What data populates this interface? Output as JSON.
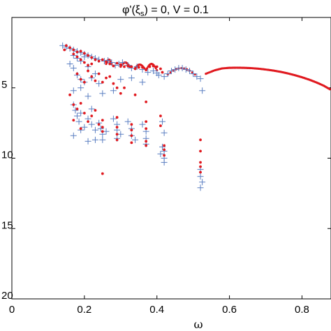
{
  "chart_data": {
    "type": "scatter",
    "title": "φ'(ξs) = 0, V = 0.1",
    "xlabel": "ω",
    "ylabel": "",
    "xlim": [
      0,
      0.88
    ],
    "ylim": [
      20,
      0
    ],
    "y_inverted": true,
    "x_ticks": [
      "0",
      "0.2",
      "0.4",
      "0.6",
      "0.8"
    ],
    "x_tick_values": [
      0,
      0.2,
      0.4,
      0.6,
      0.8
    ],
    "y_ticks": [
      "5",
      "10",
      "15",
      "20"
    ],
    "y_tick_values": [
      5,
      10,
      15,
      20
    ],
    "grid": false,
    "series": [
      {
        "marker": "plus",
        "color": "#5b7fc2",
        "points": [
          [
            0.14,
            2.0
          ],
          [
            0.15,
            2.1
          ],
          [
            0.16,
            2.2
          ],
          [
            0.17,
            2.3
          ],
          [
            0.18,
            2.4
          ],
          [
            0.19,
            2.5
          ],
          [
            0.2,
            2.6
          ],
          [
            0.21,
            2.7
          ],
          [
            0.22,
            2.8
          ],
          [
            0.23,
            2.9
          ],
          [
            0.24,
            3.0
          ],
          [
            0.255,
            3.1
          ],
          [
            0.265,
            3.05
          ],
          [
            0.275,
            3.2
          ],
          [
            0.285,
            3.4
          ],
          [
            0.295,
            3.3
          ],
          [
            0.305,
            3.2
          ],
          [
            0.32,
            3.4
          ],
          [
            0.33,
            3.6
          ],
          [
            0.345,
            3.5
          ],
          [
            0.36,
            3.7
          ],
          [
            0.375,
            3.9
          ],
          [
            0.39,
            3.8
          ],
          [
            0.4,
            3.95
          ],
          [
            0.405,
            4.1
          ],
          [
            0.42,
            4.2
          ],
          [
            0.43,
            4.0
          ],
          [
            0.44,
            3.8
          ],
          [
            0.45,
            3.7
          ],
          [
            0.46,
            3.6
          ],
          [
            0.47,
            3.6
          ],
          [
            0.48,
            3.7
          ],
          [
            0.49,
            3.8
          ],
          [
            0.5,
            4.0
          ],
          [
            0.51,
            4.2
          ],
          [
            0.52,
            4.35
          ],
          [
            0.525,
            5.2
          ],
          [
            0.17,
            2.7
          ],
          [
            0.18,
            2.9
          ],
          [
            0.19,
            3.1
          ],
          [
            0.2,
            2.8
          ],
          [
            0.21,
            3.5
          ],
          [
            0.16,
            3.3
          ],
          [
            0.17,
            3.6
          ],
          [
            0.18,
            4.1
          ],
          [
            0.19,
            4.4
          ],
          [
            0.2,
            4.6
          ],
          [
            0.22,
            4.3
          ],
          [
            0.23,
            4.0
          ],
          [
            0.17,
            5.2
          ],
          [
            0.19,
            5.0
          ],
          [
            0.21,
            5.6
          ],
          [
            0.24,
            4.7
          ],
          [
            0.25,
            5.4
          ],
          [
            0.28,
            5.2
          ],
          [
            0.3,
            4.4
          ],
          [
            0.33,
            4.3
          ],
          [
            0.36,
            4.6
          ],
          [
            0.17,
            6.2
          ],
          [
            0.175,
            6.6
          ],
          [
            0.18,
            7.0
          ],
          [
            0.185,
            7.4
          ],
          [
            0.19,
            6.8
          ],
          [
            0.2,
            7.8
          ],
          [
            0.21,
            7.2
          ],
          [
            0.22,
            6.5
          ],
          [
            0.22,
            7.6
          ],
          [
            0.23,
            8.0
          ],
          [
            0.24,
            7.5
          ],
          [
            0.245,
            7.9
          ],
          [
            0.25,
            8.3
          ],
          [
            0.25,
            8.7
          ],
          [
            0.26,
            8.1
          ],
          [
            0.17,
            8.4
          ],
          [
            0.19,
            8.0
          ],
          [
            0.21,
            8.8
          ],
          [
            0.23,
            8.7
          ],
          [
            0.28,
            7.2
          ],
          [
            0.29,
            7.6
          ],
          [
            0.29,
            8.0
          ],
          [
            0.29,
            8.6
          ],
          [
            0.3,
            8.3
          ],
          [
            0.32,
            7.4
          ],
          [
            0.33,
            7.9
          ],
          [
            0.33,
            8.4
          ],
          [
            0.34,
            8.7
          ],
          [
            0.36,
            7.6
          ],
          [
            0.37,
            8.1
          ],
          [
            0.37,
            8.6
          ],
          [
            0.37,
            9.0
          ],
          [
            0.415,
            7.4
          ],
          [
            0.42,
            8.2
          ],
          [
            0.415,
            9.2
          ],
          [
            0.42,
            9.5
          ],
          [
            0.41,
            9.7
          ],
          [
            0.42,
            10.0
          ],
          [
            0.42,
            10.3
          ],
          [
            0.52,
            10.8
          ],
          [
            0.52,
            11.3
          ],
          [
            0.525,
            11.7
          ],
          [
            0.52,
            12.1
          ]
        ]
      },
      {
        "marker": "dot",
        "color": "#e0191f",
        "points": [
          [
            0.145,
            2.3
          ],
          [
            0.15,
            2.0
          ],
          [
            0.16,
            2.15
          ],
          [
            0.17,
            2.3
          ],
          [
            0.18,
            2.45
          ],
          [
            0.19,
            2.4
          ],
          [
            0.2,
            2.55
          ],
          [
            0.21,
            2.7
          ],
          [
            0.22,
            2.85
          ],
          [
            0.23,
            3.0
          ],
          [
            0.24,
            3.1
          ],
          [
            0.25,
            3.0
          ],
          [
            0.26,
            3.15
          ],
          [
            0.27,
            3.3
          ],
          [
            0.28,
            3.45
          ],
          [
            0.29,
            3.25
          ],
          [
            0.3,
            3.35
          ],
          [
            0.31,
            3.5
          ],
          [
            0.32,
            3.45
          ],
          [
            0.33,
            3.5
          ],
          [
            0.34,
            3.65
          ],
          [
            0.35,
            3.55
          ],
          [
            0.36,
            3.55
          ],
          [
            0.37,
            3.7
          ],
          [
            0.38,
            3.5
          ],
          [
            0.39,
            3.45
          ],
          [
            0.4,
            3.5
          ],
          [
            0.41,
            3.65
          ],
          [
            0.415,
            3.9
          ],
          [
            0.17,
            2.6
          ],
          [
            0.18,
            2.8
          ],
          [
            0.19,
            3.0
          ],
          [
            0.2,
            3.2
          ],
          [
            0.21,
            3.4
          ],
          [
            0.22,
            3.3
          ],
          [
            0.18,
            4.0
          ],
          [
            0.19,
            4.4
          ],
          [
            0.2,
            4.6
          ],
          [
            0.21,
            3.8
          ],
          [
            0.22,
            4.2
          ],
          [
            0.23,
            4.5
          ],
          [
            0.24,
            4.0
          ],
          [
            0.25,
            4.6
          ],
          [
            0.26,
            4.3
          ],
          [
            0.27,
            4.2
          ],
          [
            0.28,
            4.7
          ],
          [
            0.29,
            5.0
          ],
          [
            0.3,
            5.4
          ],
          [
            0.31,
            5.0
          ],
          [
            0.34,
            5.5
          ],
          [
            0.37,
            6.0
          ],
          [
            0.16,
            5.5
          ],
          [
            0.17,
            6.2
          ],
          [
            0.18,
            6.5
          ],
          [
            0.19,
            6.1
          ],
          [
            0.2,
            6.8
          ],
          [
            0.21,
            7.4
          ],
          [
            0.22,
            7.0
          ],
          [
            0.23,
            6.6
          ],
          [
            0.24,
            7.6
          ],
          [
            0.25,
            7.3
          ],
          [
            0.25,
            7.8
          ],
          [
            0.25,
            8.1
          ],
          [
            0.25,
            11.1
          ],
          [
            0.17,
            7.3
          ],
          [
            0.19,
            7.9
          ],
          [
            0.29,
            7.1
          ],
          [
            0.29,
            7.8
          ],
          [
            0.29,
            8.3
          ],
          [
            0.29,
            8.7
          ],
          [
            0.33,
            7.6
          ],
          [
            0.33,
            8.0
          ],
          [
            0.33,
            8.4
          ],
          [
            0.33,
            8.9
          ],
          [
            0.37,
            7.4
          ],
          [
            0.37,
            7.9
          ],
          [
            0.37,
            8.8
          ],
          [
            0.37,
            9.1
          ],
          [
            0.41,
            7.0
          ],
          [
            0.41,
            7.7
          ],
          [
            0.42,
            9.1
          ],
          [
            0.42,
            9.4
          ],
          [
            0.42,
            9.8
          ],
          [
            0.52,
            8.7
          ],
          [
            0.52,
            9.5
          ],
          [
            0.52,
            10.3
          ],
          [
            0.52,
            10.6
          ],
          [
            0.52,
            11.0
          ]
        ]
      }
    ],
    "continuous_arc": {
      "color": "#e0191f",
      "marker": "dot",
      "comment_free": true,
      "x_start": 0.535,
      "x_end": 0.88,
      "y_at_x": [
        [
          0.535,
          4.0
        ],
        [
          0.56,
          3.75
        ],
        [
          0.58,
          3.62
        ],
        [
          0.6,
          3.58
        ],
        [
          0.62,
          3.57
        ],
        [
          0.64,
          3.58
        ],
        [
          0.66,
          3.6
        ],
        [
          0.68,
          3.64
        ],
        [
          0.7,
          3.7
        ],
        [
          0.72,
          3.77
        ],
        [
          0.74,
          3.86
        ],
        [
          0.76,
          3.97
        ],
        [
          0.78,
          4.1
        ],
        [
          0.8,
          4.25
        ],
        [
          0.82,
          4.42
        ],
        [
          0.84,
          4.62
        ],
        [
          0.86,
          4.85
        ],
        [
          0.88,
          5.15
        ]
      ]
    },
    "bump_arcs": {
      "color": "#e0191f",
      "arcs": [
        {
          "x0": 0.26,
          "x1": 0.275,
          "ybase": 3.3,
          "ypeak": 3.0
        },
        {
          "x0": 0.3,
          "x1": 0.325,
          "ybase": 3.5,
          "ypeak": 3.2
        },
        {
          "x0": 0.34,
          "x1": 0.365,
          "ybase": 3.6,
          "ypeak": 3.35
        },
        {
          "x0": 0.37,
          "x1": 0.4,
          "ybase": 3.75,
          "ypeak": 3.3
        },
        {
          "x0": 0.43,
          "x1": 0.505,
          "ybase": 4.05,
          "ypeak": 3.6
        }
      ]
    }
  }
}
